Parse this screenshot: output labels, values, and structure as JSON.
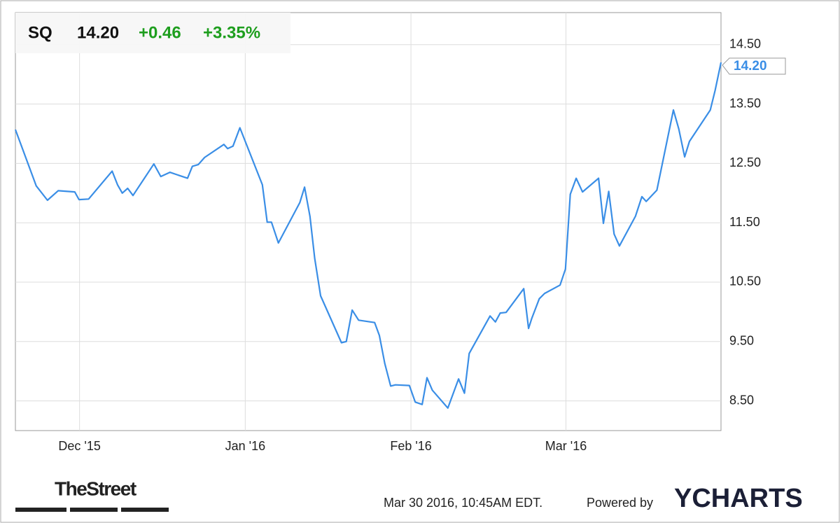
{
  "chart_data": {
    "type": "line",
    "header": {
      "symbol": "SQ",
      "price": "14.20",
      "change": "+0.46",
      "change_percent": "+3.35%"
    },
    "x": [
      0,
      3.9,
      6,
      8,
      11.1,
      11.9,
      13.7,
      18.1,
      19.1,
      20,
      21,
      22,
      25.9,
      27.2,
      28.9,
      32.2,
      33.1,
      34.2,
      35.4,
      39,
      39.7,
      40.7,
      42,
      46.2,
      47.1,
      47.9,
      49.2,
      53.2,
      54.1,
      55.1,
      56,
      57.1,
      61,
      61.9,
      63,
      64.2,
      67.2,
      68.1,
      69.1,
      70.2,
      71.1,
      73.7,
      74.8,
      76.1,
      77,
      78,
      80.9,
      82.9,
      84,
      84.9,
      88.8,
      89.8,
      90.7,
      91.8,
      95.1,
      96,
      96.6,
      98,
      99,
      101.9,
      102.9,
      103.8,
      104.9,
      106.1,
      109.1,
      110,
      111,
      112,
      113,
      116,
      117.2,
      118,
      120,
      123.1,
      124.1,
      125.2,
      126.1,
      130,
      130.9,
      132
    ],
    "values": [
      13.07,
      12.12,
      11.88,
      12.04,
      12.02,
      11.89,
      11.9,
      12.37,
      12.14,
      12.0,
      12.08,
      11.96,
      12.49,
      12.28,
      12.35,
      12.25,
      12.45,
      12.48,
      12.6,
      12.82,
      12.75,
      12.79,
      13.1,
      12.14,
      11.51,
      11.51,
      11.16,
      11.84,
      12.1,
      11.61,
      10.9,
      10.27,
      9.48,
      9.5,
      10.03,
      9.86,
      9.82,
      9.6,
      9.13,
      8.75,
      8.77,
      8.76,
      8.48,
      8.44,
      8.89,
      8.68,
      8.38,
      8.87,
      8.63,
      9.3,
      9.93,
      9.83,
      9.98,
      9.99,
      10.39,
      9.72,
      9.89,
      10.22,
      10.31,
      10.45,
      10.72,
      11.98,
      12.25,
      12.02,
      12.25,
      11.49,
      12.03,
      11.31,
      11.11,
      11.61,
      11.94,
      11.86,
      12.05,
      13.4,
      13.08,
      12.61,
      12.87,
      13.4,
      13.73,
      14.2
    ],
    "color": "#3a8ee6",
    "xlim": [
      0,
      132
    ],
    "xticks": [
      {
        "value": 12,
        "label": "Dec '15"
      },
      {
        "value": 43,
        "label": "Jan '16"
      },
      {
        "value": 74,
        "label": "Feb '16"
      },
      {
        "value": 103,
        "label": "Mar '16"
      }
    ],
    "ylim": [
      8.0,
      15.04
    ],
    "yticks": [
      {
        "value": 8.5,
        "label": "8.50"
      },
      {
        "value": 9.5,
        "label": "9.50"
      },
      {
        "value": 10.5,
        "label": "10.50"
      },
      {
        "value": 11.5,
        "label": "11.50"
      },
      {
        "value": 12.5,
        "label": "12.50"
      },
      {
        "value": 13.5,
        "label": "13.50"
      },
      {
        "value": 14.5,
        "label": "14.50"
      }
    ],
    "grid": true
  },
  "footer": {
    "source_logo": "TheStreet",
    "timestamp": "Mar 30 2016, 10:45AM EDT.",
    "powered_by": "Powered by",
    "brand": "YCHARTS"
  }
}
